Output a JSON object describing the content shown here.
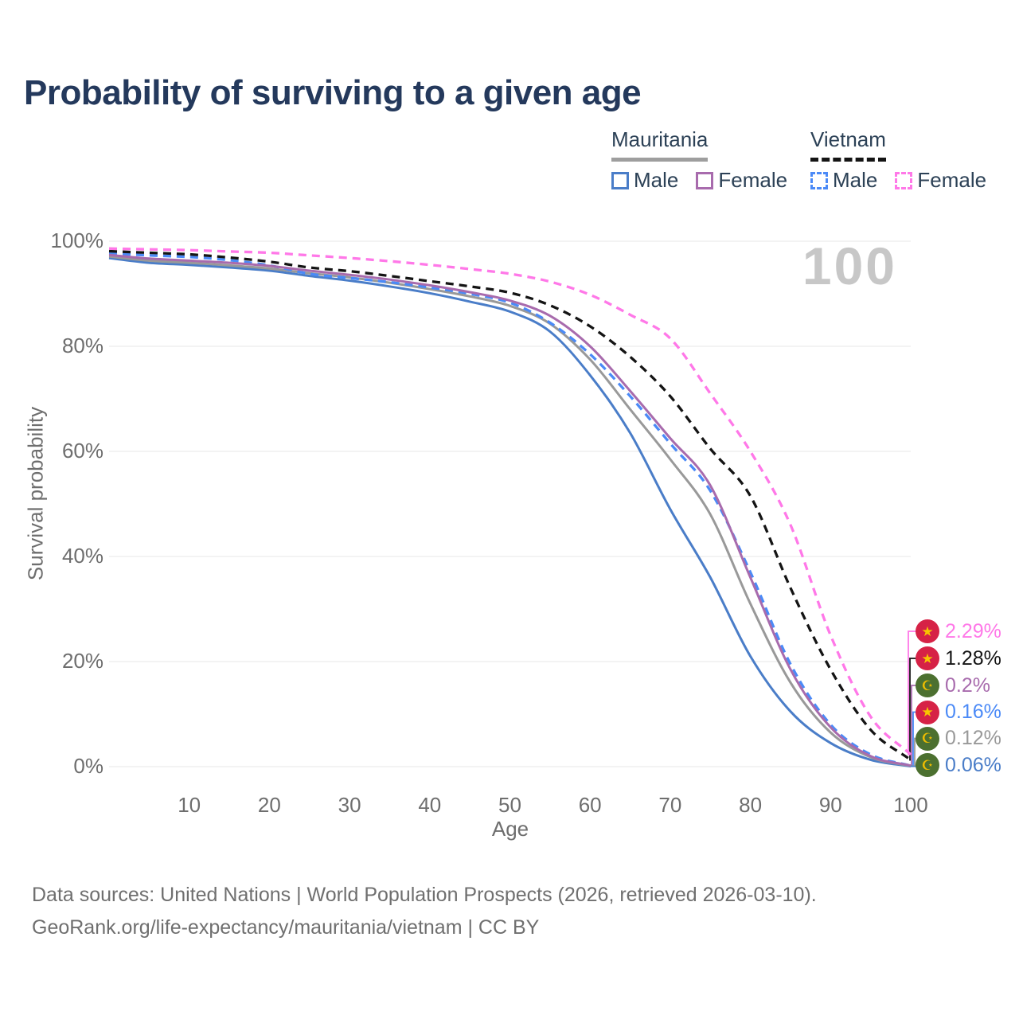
{
  "title": "Probability of surviving to a given age",
  "watermark": "100",
  "legend": {
    "groups": [
      {
        "title": "Mauritania",
        "line_style": "solid",
        "underline_color": "#9e9e9e",
        "items": [
          {
            "label": "Male",
            "color": "#4a7dc8",
            "dashed": false
          },
          {
            "label": "Female",
            "color": "#a86bad",
            "dashed": false
          }
        ]
      },
      {
        "title": "Vietnam",
        "line_style": "dashed",
        "underline_color": "#141414",
        "items": [
          {
            "label": "Male",
            "color": "#4b8af7",
            "dashed": true
          },
          {
            "label": "Female",
            "color": "#ff78e8",
            "dashed": true
          }
        ]
      }
    ]
  },
  "chart_data": {
    "type": "line",
    "title": "Probability of surviving to a given age",
    "xlabel": "Age",
    "ylabel": "Survival probability",
    "xlim": [
      0,
      100
    ],
    "ylim": [
      0,
      100
    ],
    "x_ticks": [
      10,
      20,
      30,
      40,
      50,
      60,
      70,
      80,
      90,
      100
    ],
    "y_ticks": [
      0,
      20,
      40,
      60,
      80,
      100
    ],
    "y_tick_suffix": "%",
    "grid": "horizontal",
    "hover_age_indicator": "100",
    "ages": [
      0,
      5,
      10,
      15,
      20,
      25,
      30,
      35,
      40,
      45,
      50,
      55,
      60,
      65,
      70,
      75,
      80,
      85,
      90,
      95,
      100
    ],
    "series": [
      {
        "id": "vietnam-female",
        "country": "Vietnam",
        "sex": "Female",
        "color": "#ff78e8",
        "dashed": true,
        "end_label": "2.29%",
        "flag": "vietnam",
        "values": [
          98.6,
          98.45,
          98.3,
          98.05,
          97.8,
          97.3,
          96.8,
          96.2,
          95.5,
          94.7,
          93.8,
          92.3,
          89.8,
          86.0,
          81.5,
          71.0,
          60.0,
          46.0,
          25.0,
          9.5,
          2.29
        ]
      },
      {
        "id": "vietnam-combined",
        "country": "Vietnam",
        "color": "#141414",
        "dashed": true,
        "end_label": "1.28%",
        "flag": "vietnam",
        "values": [
          98.1,
          97.8,
          97.5,
          96.9,
          96.1,
          95.0,
          94.3,
          93.4,
          92.4,
          91.4,
          90.2,
          87.8,
          83.8,
          78.0,
          70.5,
          60.5,
          51.5,
          34.0,
          18.5,
          7.0,
          1.28
        ]
      },
      {
        "id": "mauritania-female",
        "country": "Mauritania",
        "sex": "Female",
        "color": "#a86bad",
        "dashed": false,
        "end_label": "0.2%",
        "flag": "mauritania",
        "values": [
          97.4,
          96.7,
          96.3,
          95.9,
          95.3,
          94.4,
          93.6,
          92.7,
          91.6,
          90.3,
          88.7,
          85.8,
          80.0,
          71.5,
          62.5,
          53.5,
          36.0,
          18.5,
          7.5,
          2.0,
          0.2
        ]
      },
      {
        "id": "vietnam-male",
        "country": "Vietnam",
        "sex": "Male",
        "color": "#4b8af7",
        "dashed": true,
        "end_label": "0.16%",
        "flag": "vietnam",
        "values": [
          97.7,
          97.3,
          97.0,
          96.4,
          95.4,
          93.8,
          93.0,
          92.2,
          91.2,
          90.0,
          88.3,
          84.5,
          78.5,
          70.5,
          61.5,
          52.5,
          37.0,
          19.5,
          8.0,
          2.3,
          0.16
        ]
      },
      {
        "id": "mauritania-combined",
        "country": "Mauritania",
        "color": "#999999",
        "dashed": false,
        "end_label": "0.12%",
        "flag": "mauritania",
        "values": [
          97.1,
          96.3,
          95.9,
          95.4,
          94.8,
          93.9,
          93.1,
          92.1,
          90.9,
          89.5,
          87.7,
          84.3,
          77.5,
          68.0,
          58.5,
          48.0,
          31.0,
          16.0,
          6.5,
          1.8,
          0.12
        ]
      },
      {
        "id": "mauritania-male",
        "country": "Mauritania",
        "sex": "Male",
        "color": "#4a7dc8",
        "dashed": false,
        "end_label": "0.06%",
        "flag": "mauritania",
        "values": [
          96.8,
          95.9,
          95.5,
          95.0,
          94.4,
          93.4,
          92.5,
          91.4,
          90.1,
          88.5,
          86.6,
          82.8,
          74.5,
          63.5,
          49.0,
          36.0,
          21.0,
          10.5,
          4.5,
          1.3,
          0.06
        ]
      }
    ]
  },
  "flags": {
    "vietnam": {
      "bg": "#d62246",
      "symbol": "★",
      "symbol_color": "#f7c600"
    },
    "mauritania": {
      "bg": "#4c7030",
      "symbol": "☪",
      "symbol_color": "#eebc00"
    }
  },
  "footer": {
    "line1": "Data sources: United Nations | World Population Prospects (2026, retrieved 2026-03-10).",
    "line2": "GeoRank.org/life-expectancy/mauritania/vietnam | CC BY"
  }
}
